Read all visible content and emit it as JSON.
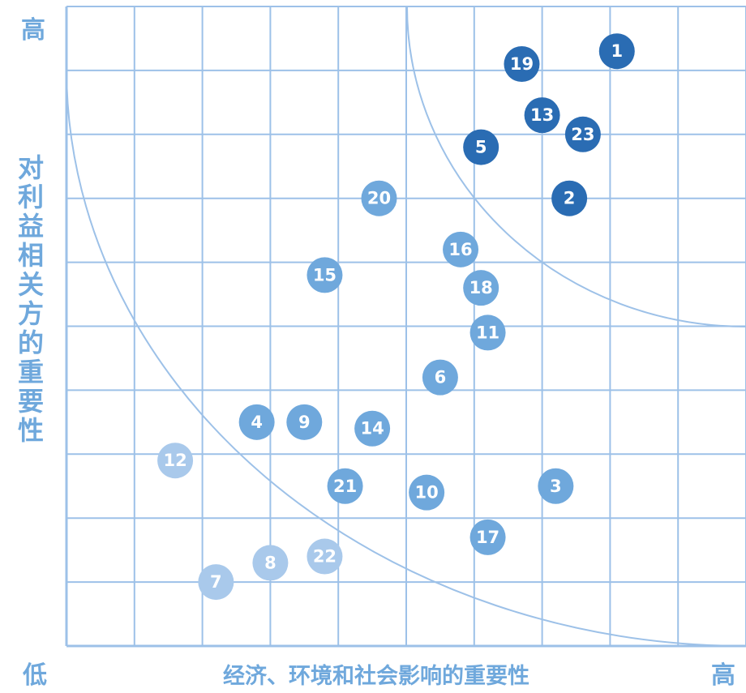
{
  "chart_data": {
    "type": "scatter",
    "title": "",
    "xlabel": "经济、环境和社会影响的重要性",
    "ylabel": "对利益相关方的重要性",
    "x_low": "低",
    "x_high": "高",
    "y_high": "高",
    "xlim": [
      0,
      10
    ],
    "ylim": [
      0,
      10
    ],
    "grid": true,
    "colors": {
      "high": "#2a6cb3",
      "medium": "#6fa8dc",
      "low": "#a9c9eb",
      "grid": "#9dc1e8"
    },
    "points": [
      {
        "label": "1",
        "x": 8.1,
        "y": 9.3,
        "tier": "high"
      },
      {
        "label": "19",
        "x": 6.7,
        "y": 9.1,
        "tier": "high"
      },
      {
        "label": "13",
        "x": 7.0,
        "y": 8.3,
        "tier": "high"
      },
      {
        "label": "23",
        "x": 7.6,
        "y": 8.0,
        "tier": "high"
      },
      {
        "label": "5",
        "x": 6.1,
        "y": 7.8,
        "tier": "high"
      },
      {
        "label": "2",
        "x": 7.4,
        "y": 7.0,
        "tier": "high"
      },
      {
        "label": "20",
        "x": 4.6,
        "y": 7.0,
        "tier": "medium"
      },
      {
        "label": "16",
        "x": 5.8,
        "y": 6.2,
        "tier": "medium"
      },
      {
        "label": "15",
        "x": 3.8,
        "y": 5.8,
        "tier": "medium"
      },
      {
        "label": "18",
        "x": 6.1,
        "y": 5.6,
        "tier": "medium"
      },
      {
        "label": "11",
        "x": 6.2,
        "y": 4.9,
        "tier": "medium"
      },
      {
        "label": "6",
        "x": 5.5,
        "y": 4.2,
        "tier": "medium"
      },
      {
        "label": "4",
        "x": 2.8,
        "y": 3.5,
        "tier": "medium"
      },
      {
        "label": "9",
        "x": 3.5,
        "y": 3.5,
        "tier": "medium"
      },
      {
        "label": "14",
        "x": 4.5,
        "y": 3.4,
        "tier": "medium"
      },
      {
        "label": "12",
        "x": 1.6,
        "y": 2.9,
        "tier": "low"
      },
      {
        "label": "3",
        "x": 7.2,
        "y": 2.5,
        "tier": "medium"
      },
      {
        "label": "21",
        "x": 4.1,
        "y": 2.5,
        "tier": "medium"
      },
      {
        "label": "10",
        "x": 5.3,
        "y": 2.4,
        "tier": "medium"
      },
      {
        "label": "17",
        "x": 6.2,
        "y": 1.7,
        "tier": "medium"
      },
      {
        "label": "8",
        "x": 3.0,
        "y": 1.3,
        "tier": "low"
      },
      {
        "label": "22",
        "x": 3.8,
        "y": 1.4,
        "tier": "low"
      },
      {
        "label": "7",
        "x": 2.2,
        "y": 1.0,
        "tier": "low"
      }
    ]
  }
}
